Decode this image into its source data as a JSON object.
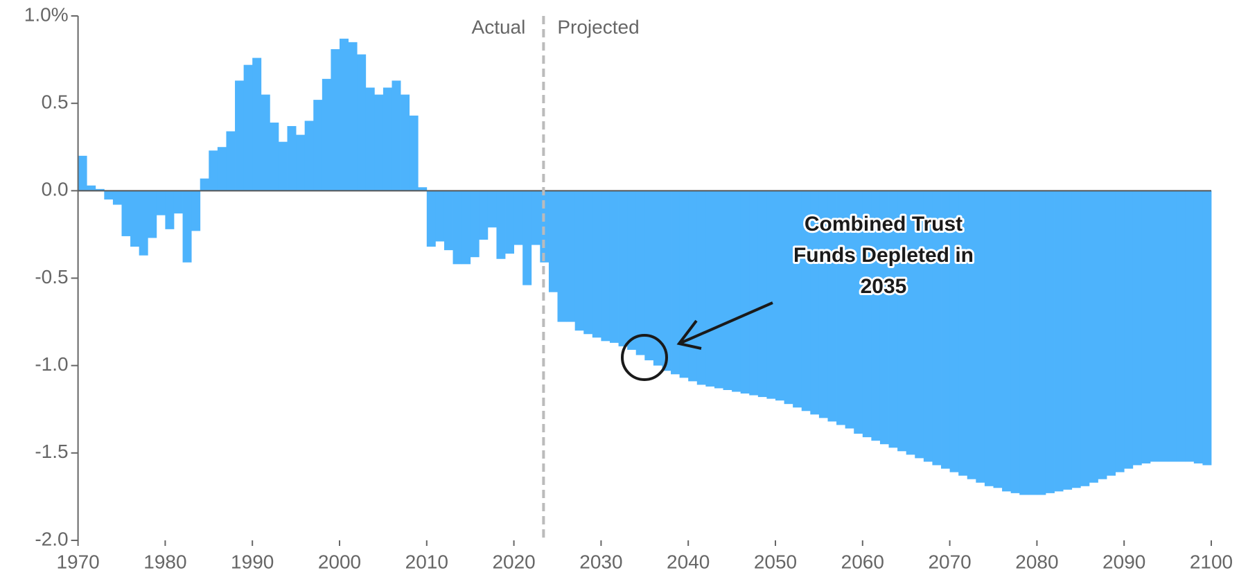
{
  "chart_data": {
    "type": "bar",
    "color": "#4db3fc",
    "x": [
      1970,
      1971,
      1972,
      1973,
      1974,
      1975,
      1976,
      1977,
      1978,
      1979,
      1980,
      1981,
      1982,
      1983,
      1984,
      1985,
      1986,
      1987,
      1988,
      1989,
      1990,
      1991,
      1992,
      1993,
      1994,
      1995,
      1996,
      1997,
      1998,
      1999,
      2000,
      2001,
      2002,
      2003,
      2004,
      2005,
      2006,
      2007,
      2008,
      2009,
      2010,
      2011,
      2012,
      2013,
      2014,
      2015,
      2016,
      2017,
      2018,
      2019,
      2020,
      2021,
      2022,
      2023,
      2024,
      2025,
      2026,
      2027,
      2028,
      2029,
      2030,
      2031,
      2032,
      2033,
      2034,
      2035,
      2036,
      2037,
      2038,
      2039,
      2040,
      2041,
      2042,
      2043,
      2044,
      2045,
      2046,
      2047,
      2048,
      2049,
      2050,
      2051,
      2052,
      2053,
      2054,
      2055,
      2056,
      2057,
      2058,
      2059,
      2060,
      2061,
      2062,
      2063,
      2064,
      2065,
      2066,
      2067,
      2068,
      2069,
      2070,
      2071,
      2072,
      2073,
      2074,
      2075,
      2076,
      2077,
      2078,
      2079,
      2080,
      2081,
      2082,
      2083,
      2084,
      2085,
      2086,
      2087,
      2088,
      2089,
      2090,
      2091,
      2092,
      2093,
      2094,
      2095,
      2096,
      2097,
      2098,
      2099
    ],
    "values": [
      0.2,
      0.03,
      0.01,
      -0.05,
      -0.08,
      -0.26,
      -0.32,
      -0.37,
      -0.27,
      -0.14,
      -0.22,
      -0.13,
      -0.41,
      -0.23,
      0.07,
      0.23,
      0.25,
      0.34,
      0.63,
      0.72,
      0.76,
      0.55,
      0.39,
      0.28,
      0.37,
      0.32,
      0.4,
      0.52,
      0.64,
      0.81,
      0.87,
      0.85,
      0.78,
      0.59,
      0.55,
      0.59,
      0.63,
      0.55,
      0.43,
      0.02,
      -0.32,
      -0.29,
      -0.34,
      -0.42,
      -0.42,
      -0.38,
      -0.28,
      -0.21,
      -0.39,
      -0.36,
      -0.31,
      -0.54,
      -0.31,
      -0.41,
      -0.58,
      -0.75,
      -0.75,
      -0.8,
      -0.82,
      -0.84,
      -0.86,
      -0.87,
      -0.89,
      -0.91,
      -0.94,
      -0.97,
      -1.0,
      -1.03,
      -1.05,
      -1.07,
      -1.09,
      -1.11,
      -1.12,
      -1.13,
      -1.14,
      -1.15,
      -1.16,
      -1.17,
      -1.18,
      -1.19,
      -1.2,
      -1.22,
      -1.24,
      -1.26,
      -1.28,
      -1.3,
      -1.32,
      -1.34,
      -1.36,
      -1.39,
      -1.41,
      -1.43,
      -1.45,
      -1.47,
      -1.49,
      -1.51,
      -1.53,
      -1.55,
      -1.57,
      -1.59,
      -1.61,
      -1.63,
      -1.65,
      -1.67,
      -1.69,
      -1.7,
      -1.72,
      -1.73,
      -1.74,
      -1.74,
      -1.74,
      -1.73,
      -1.72,
      -1.71,
      -1.7,
      -1.69,
      -1.67,
      -1.65,
      -1.63,
      -1.61,
      -1.59,
      -1.57,
      -1.56,
      -1.55,
      -1.55,
      -1.55,
      -1.55,
      -1.55,
      -1.56,
      -1.57
    ],
    "xlim": [
      1970,
      2100
    ],
    "xticks": [
      1970,
      1980,
      1990,
      2000,
      2010,
      2020,
      2030,
      2040,
      2050,
      2060,
      2070,
      2080,
      2090,
      2100
    ],
    "ylim": [
      -2,
      1
    ],
    "yticks": [
      {
        "value": 1,
        "label": "1.0%"
      },
      0.5,
      {
        "value": 0,
        "label": "0.0"
      },
      -0.5,
      {
        "value": -1,
        "label": "-1.0"
      },
      -1.5,
      {
        "value": -2,
        "label": "-2.0"
      }
    ],
    "divider_x": 2023.4,
    "divider_labels": [
      "Actual",
      "Projected"
    ],
    "annotation": [
      "Combined Trust",
      "Funds Depleted in",
      "2035"
    ]
  }
}
